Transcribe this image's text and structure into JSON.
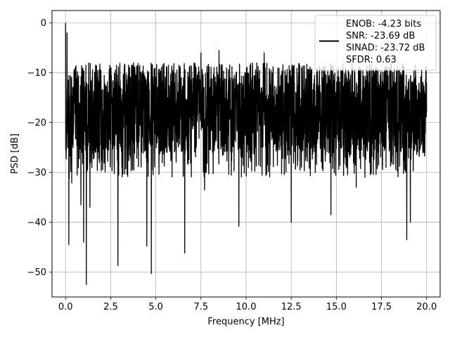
{
  "chart_data": {
    "type": "line",
    "title": "",
    "xlabel": "Frequency [MHz]",
    "ylabel": "PSD [dB]",
    "xlim": [
      -0.75,
      20.75
    ],
    "ylim": [
      -55,
      2.5
    ],
    "xticks": [
      0.0,
      2.5,
      5.0,
      7.5,
      10.0,
      12.5,
      15.0,
      17.5,
      20.0
    ],
    "xtick_labels": [
      "0.0",
      "2.5",
      "5.0",
      "7.5",
      "10.0",
      "12.5",
      "15.0",
      "17.5",
      "20.0"
    ],
    "yticks": [
      0,
      -10,
      -20,
      -30,
      -40,
      -50
    ],
    "ytick_labels": [
      "0",
      "−10",
      "−20",
      "−30",
      "−40",
      "−50"
    ],
    "grid": true,
    "legend_position": "top-right",
    "series_color": "#000000",
    "legend_lines": [
      "ENOB: -4.23 bits",
      "SNR: -23.69 dB",
      "SINAD: -23.72 dB",
      "SFDR: 0.63"
    ],
    "noise_floor_db": {
      "x_range": [
        0.0,
        20.0
      ],
      "min": -52.5,
      "max": 0
    },
    "peaks": [
      {
        "x": 0.0,
        "y": 0.0
      },
      {
        "x": 0.08,
        "y": -2.0
      },
      {
        "x": 7.5,
        "y": -6.0
      },
      {
        "x": 8.5,
        "y": -5.5
      },
      {
        "x": 11.0,
        "y": -6.0
      }
    ],
    "dips": [
      {
        "x": 0.18,
        "y": -44.5
      },
      {
        "x": 0.85,
        "y": -36.5
      },
      {
        "x": 1.0,
        "y": -44.0
      },
      {
        "x": 1.15,
        "y": -52.5
      },
      {
        "x": 1.35,
        "y": -37.0
      },
      {
        "x": 2.9,
        "y": -48.7
      },
      {
        "x": 4.5,
        "y": -44.8
      },
      {
        "x": 4.75,
        "y": -50.3
      },
      {
        "x": 6.6,
        "y": -46.2
      },
      {
        "x": 7.7,
        "y": -33.5
      },
      {
        "x": 9.6,
        "y": -40.8
      },
      {
        "x": 12.5,
        "y": -40.0
      },
      {
        "x": 14.7,
        "y": -38.5
      },
      {
        "x": 16.1,
        "y": -33.0
      },
      {
        "x": 18.9,
        "y": -43.5
      },
      {
        "x": 19.1,
        "y": -40.0
      }
    ]
  }
}
